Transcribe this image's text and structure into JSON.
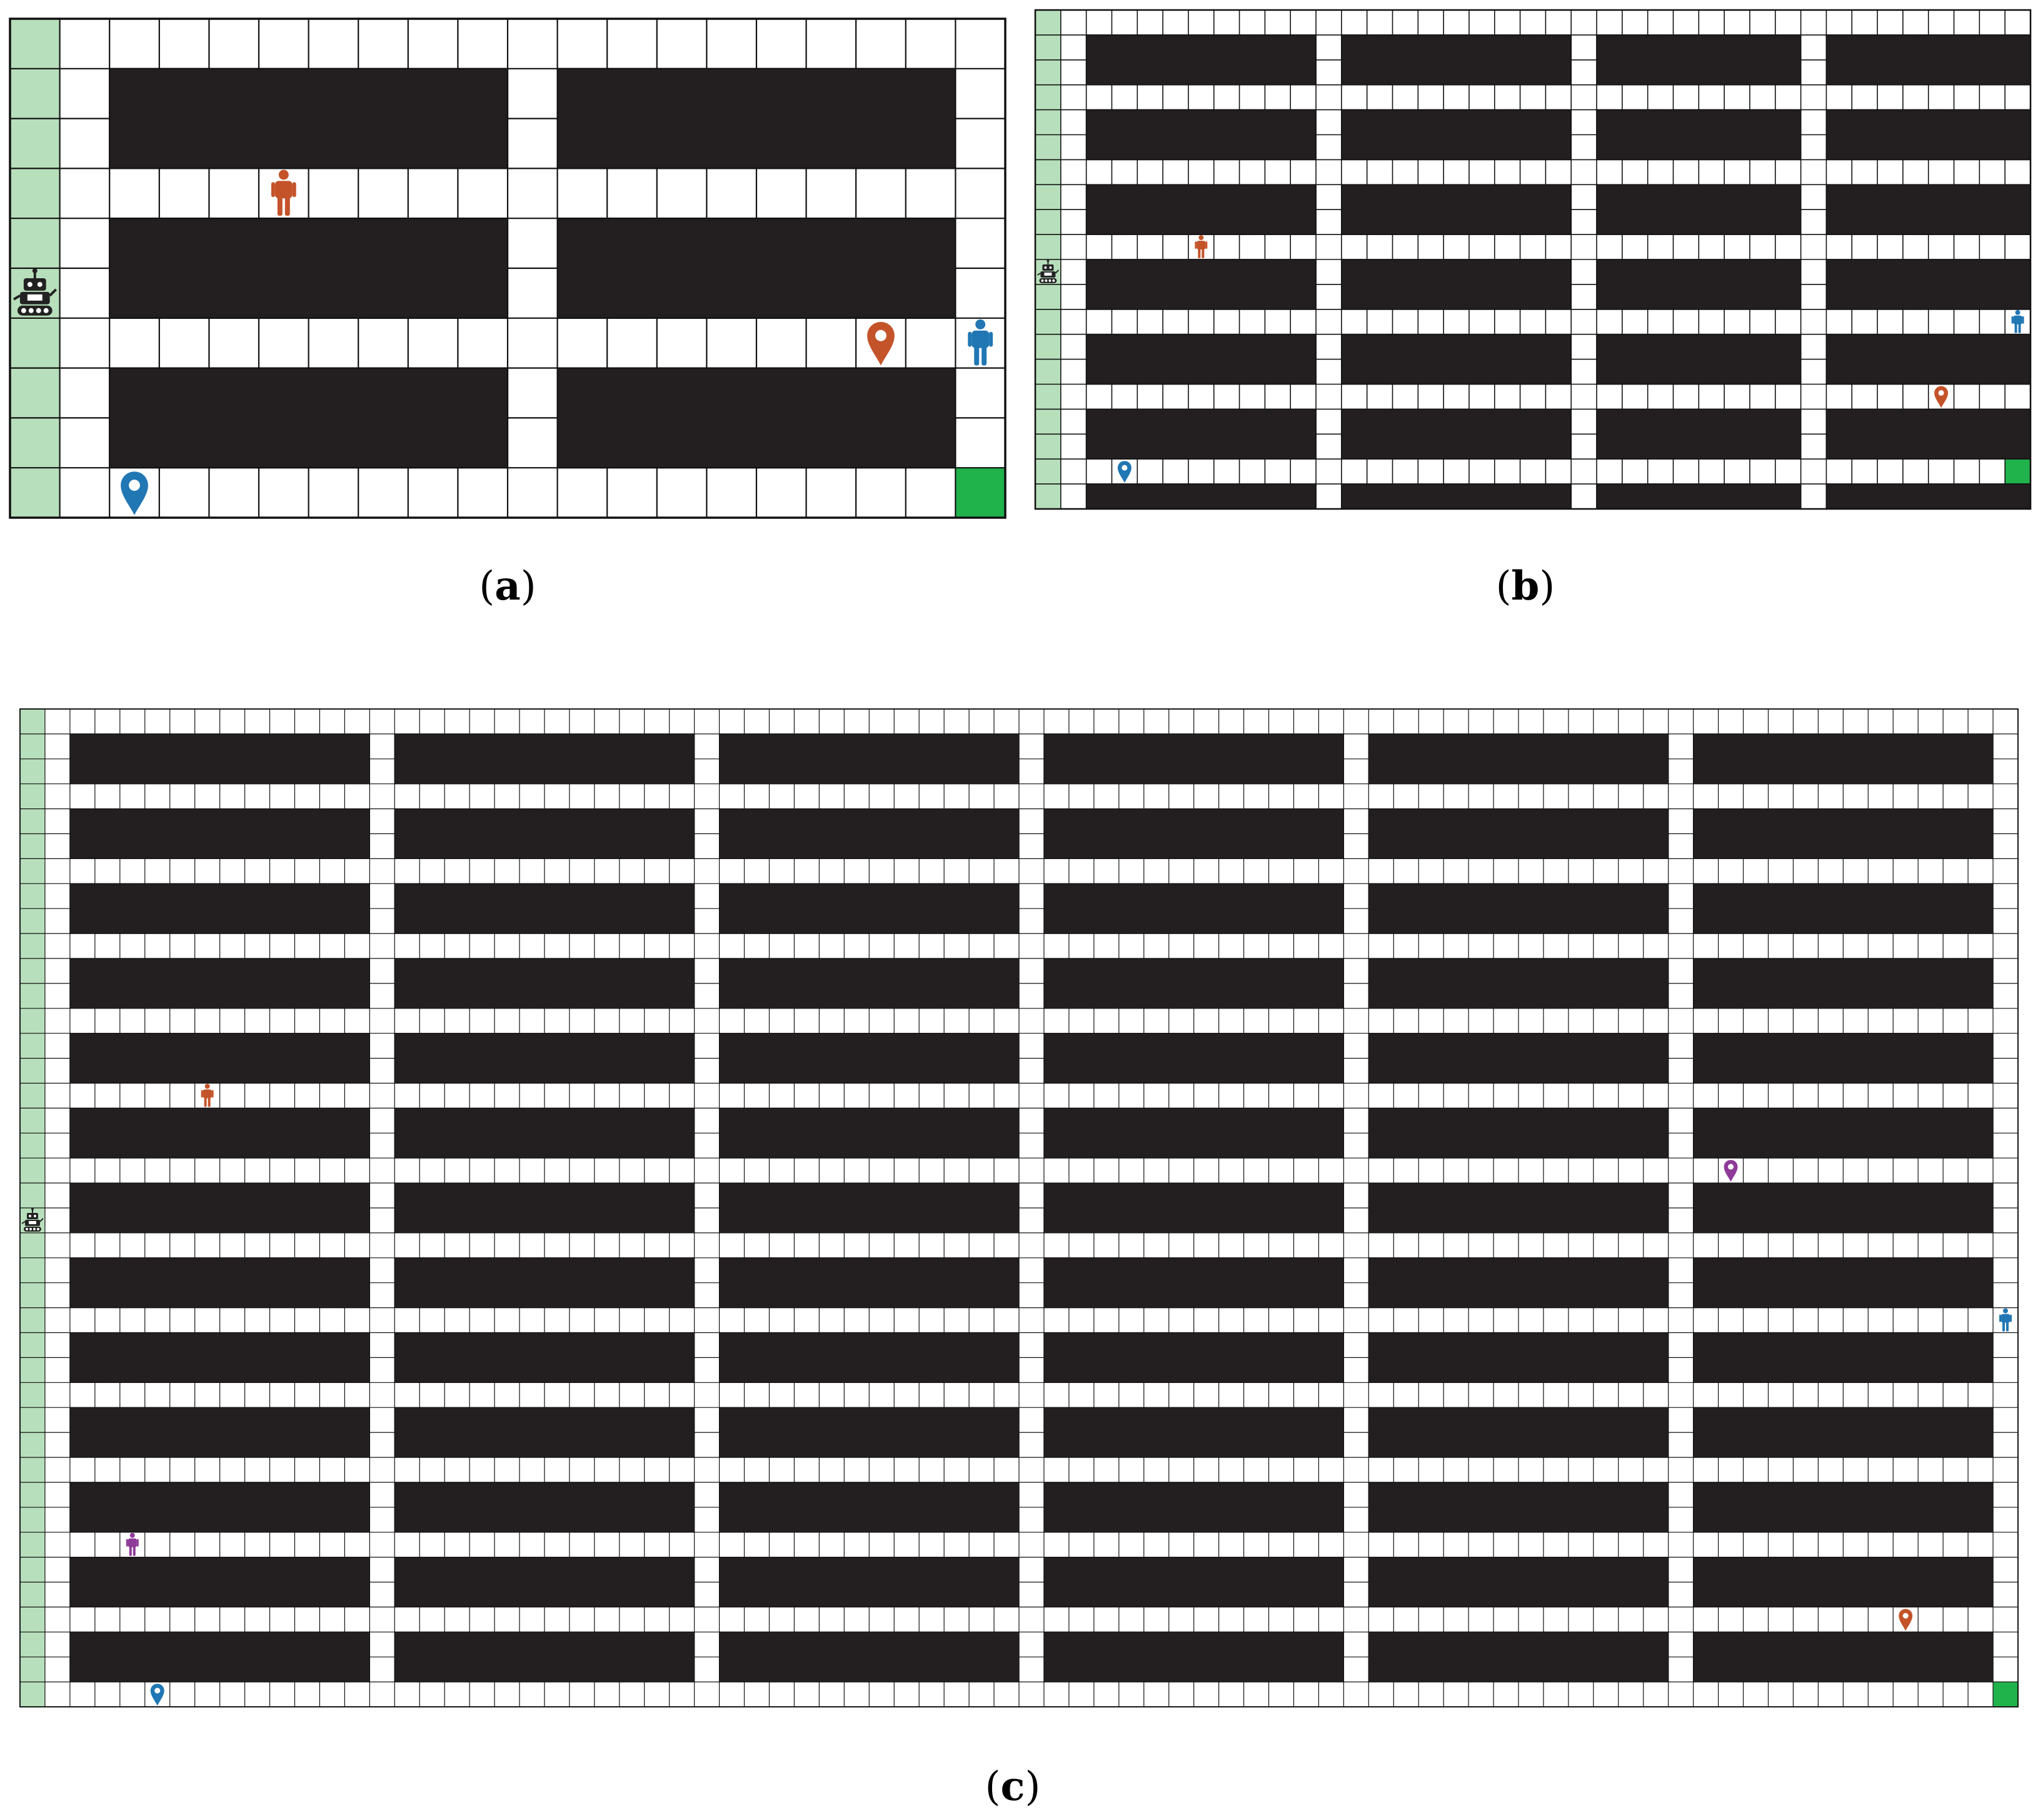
{
  "colors": {
    "shelf": "#231f20",
    "grid_line": "#111111",
    "aisle": "#ffffff",
    "station_column": "#b7dfbb",
    "goal_cell": "#20b24b",
    "agent_orange": "#c4532a",
    "agent_blue": "#2077b4",
    "agent_purple": "#8e3a98",
    "robot": "#222222"
  },
  "icons": {
    "robot": "robot-icon",
    "person": "person-icon",
    "marker": "map-marker-icon"
  },
  "panels": [
    {
      "id": "a",
      "caption": "a",
      "cols": 20,
      "rows": 10,
      "shelf_cols": [
        [
          2,
          9
        ],
        [
          11,
          18
        ]
      ],
      "shelf_rows": [
        [
          1,
          2
        ],
        [
          4,
          5
        ],
        [
          7,
          8
        ]
      ],
      "goal_cell": [
        19,
        9
      ],
      "robot_row": 5,
      "people": [
        {
          "color": "agent_orange",
          "col": 5,
          "row": 3
        },
        {
          "color": "agent_blue",
          "col": 19,
          "row": 6
        }
      ],
      "markers": [
        {
          "color": "agent_orange",
          "col": 17,
          "row": 6
        },
        {
          "color": "agent_blue",
          "col": 2,
          "row": 9
        }
      ]
    },
    {
      "id": "b",
      "caption": "b",
      "cols": 39,
      "rows": 20,
      "shelf_cols": [
        [
          2,
          10
        ],
        [
          12,
          20
        ],
        [
          22,
          29
        ],
        [
          31,
          38
        ]
      ],
      "shelf_rows": [
        [
          1,
          2
        ],
        [
          4,
          5
        ],
        [
          7,
          8
        ],
        [
          10,
          11
        ],
        [
          13,
          14
        ],
        [
          16,
          17
        ],
        [
          19,
          19
        ]
      ],
      "goal_cell": [
        38,
        18
      ],
      "robot_row": 10,
      "people": [
        {
          "color": "agent_orange",
          "col": 6,
          "row": 9
        },
        {
          "color": "agent_blue",
          "col": 38,
          "row": 12
        }
      ],
      "markers": [
        {
          "color": "agent_orange",
          "col": 35,
          "row": 15
        },
        {
          "color": "agent_blue",
          "col": 3,
          "row": 18
        }
      ]
    },
    {
      "id": "c",
      "caption": "c",
      "cols": 80,
      "rows": 40,
      "shelf_cols": [
        [
          2,
          13
        ],
        [
          15,
          26
        ],
        [
          28,
          39
        ],
        [
          41,
          52
        ],
        [
          54,
          65
        ],
        [
          67,
          78
        ]
      ],
      "shelf_rows": [
        [
          1,
          2
        ],
        [
          4,
          5
        ],
        [
          7,
          8
        ],
        [
          10,
          11
        ],
        [
          13,
          14
        ],
        [
          16,
          17
        ],
        [
          19,
          20
        ],
        [
          22,
          23
        ],
        [
          25,
          26
        ],
        [
          28,
          29
        ],
        [
          31,
          32
        ],
        [
          34,
          35
        ],
        [
          37,
          38
        ]
      ],
      "goal_cell": [
        79,
        39
      ],
      "robot_row": 20,
      "people": [
        {
          "color": "agent_orange",
          "col": 7,
          "row": 15
        },
        {
          "color": "agent_blue",
          "col": 79,
          "row": 24
        },
        {
          "color": "agent_purple",
          "col": 4,
          "row": 33
        }
      ],
      "markers": [
        {
          "color": "agent_purple",
          "col": 68,
          "row": 18
        },
        {
          "color": "agent_orange",
          "col": 75,
          "row": 36
        },
        {
          "color": "agent_blue",
          "col": 5,
          "row": 39
        }
      ]
    }
  ]
}
